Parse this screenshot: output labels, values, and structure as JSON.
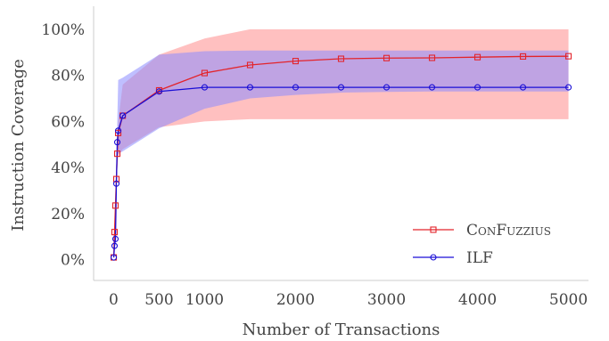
{
  "chart_data": {
    "type": "line",
    "title": "",
    "xlabel": "Number of Transactions",
    "ylabel": "Instruction Coverage",
    "xlim": [
      -220,
      5220
    ],
    "ylim": [
      -0.09,
      1.1
    ],
    "xticks": [
      0,
      500,
      1000,
      2000,
      3000,
      4000,
      5000
    ],
    "xtick_labels": [
      "0",
      "500",
      "1000",
      "2000",
      "3000",
      "4000",
      "5000"
    ],
    "yticks": [
      0,
      0.2,
      0.4,
      0.6,
      0.8,
      1.0
    ],
    "ytick_labels": [
      "0%",
      "20%",
      "40%",
      "60%",
      "80%",
      "100%"
    ],
    "grid": false,
    "legend_position": "lower-right",
    "series": [
      {
        "name": "ConFuzzius",
        "color": "#e3242b",
        "band_color": "#ff8c8c",
        "marker": "square",
        "x": [
          1,
          10,
          20,
          30,
          40,
          50,
          100,
          500,
          1000,
          1500,
          2000,
          2500,
          3000,
          3500,
          4000,
          4500,
          5000
        ],
        "y": [
          0.01,
          0.12,
          0.235,
          0.35,
          0.46,
          0.55,
          0.625,
          0.735,
          0.81,
          0.845,
          0.862,
          0.872,
          0.875,
          0.876,
          0.879,
          0.882,
          0.883
        ],
        "lower": [
          0.01,
          0.09,
          0.19,
          0.3,
          0.4,
          0.45,
          0.48,
          0.575,
          0.6,
          0.61,
          0.61,
          0.61,
          0.61,
          0.61,
          0.61,
          0.61,
          0.61
        ],
        "upper": [
          0.01,
          0.15,
          0.3,
          0.42,
          0.52,
          0.6,
          0.76,
          0.89,
          0.96,
          1.0,
          1.0,
          1.0,
          1.0,
          1.0,
          1.0,
          1.0,
          1.0
        ]
      },
      {
        "name": "ILF",
        "color": "#1a0fd6",
        "band_color": "#8a8aff",
        "marker": "circle",
        "x": [
          1,
          10,
          20,
          30,
          40,
          50,
          100,
          500,
          1000,
          1500,
          2000,
          2500,
          3000,
          3500,
          4000,
          4500,
          5000
        ],
        "y": [
          0.01,
          0.06,
          0.09,
          0.33,
          0.51,
          0.56,
          0.625,
          0.73,
          0.748,
          0.748,
          0.748,
          0.748,
          0.748,
          0.748,
          0.748,
          0.748,
          0.748
        ],
        "lower": [
          0.01,
          0.05,
          0.08,
          0.25,
          0.42,
          0.46,
          0.47,
          0.57,
          0.655,
          0.7,
          0.715,
          0.725,
          0.728,
          0.73,
          0.73,
          0.73,
          0.73
        ],
        "upper": [
          0.01,
          0.08,
          0.11,
          0.42,
          0.6,
          0.78,
          0.79,
          0.89,
          0.905,
          0.908,
          0.908,
          0.908,
          0.908,
          0.908,
          0.908,
          0.908,
          0.908
        ]
      }
    ]
  }
}
